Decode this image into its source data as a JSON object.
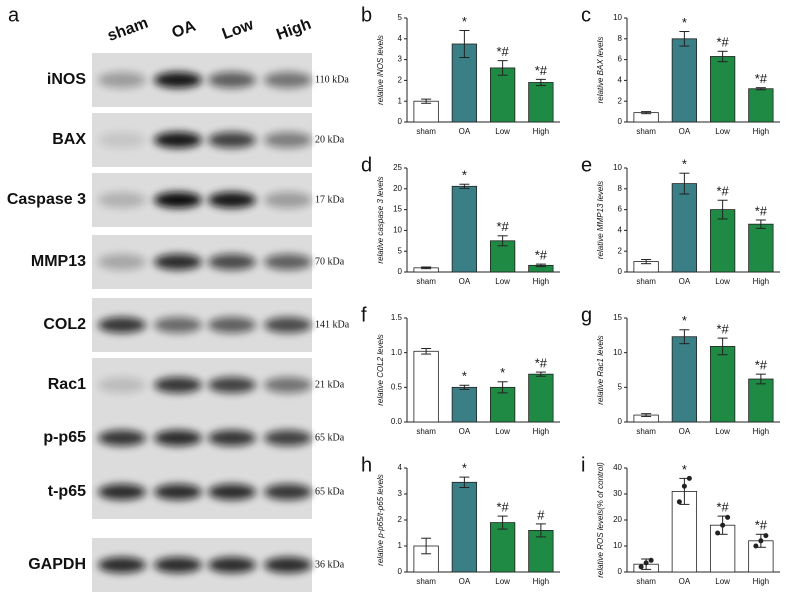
{
  "panel_a": {
    "letter": "a",
    "lanes": [
      "sham",
      "OA",
      "Low",
      "High"
    ],
    "proteins": [
      "iNOS",
      "BAX",
      "Caspase 3",
      "MMP13",
      "COL2",
      "Rac1",
      "p-p65",
      "t-p65",
      "GAPDH"
    ],
    "sizes": [
      "110 kDa",
      "20 kDa",
      "17 kDa",
      "70 kDa",
      "141 kDa",
      "21 kDa",
      "65 kDa",
      "65 kDa",
      "36 kDa"
    ]
  },
  "chart_data": [
    {
      "type": "bar",
      "letter": "b",
      "ylabel": "relative iNOS levels",
      "categories": [
        "sham",
        "OA",
        "Low",
        "High"
      ],
      "values": [
        1.0,
        3.75,
        2.6,
        1.9
      ],
      "errors": [
        0.1,
        0.65,
        0.35,
        0.15
      ],
      "annotations": [
        null,
        "*",
        "*#",
        "*#"
      ],
      "colors": [
        "#ffffff",
        "#3a7f86",
        "#1f8a44",
        "#1f8a44"
      ],
      "ylim": [
        0,
        5
      ],
      "yticks": [
        0,
        1,
        2,
        3,
        4,
        5
      ]
    },
    {
      "type": "bar",
      "letter": "c",
      "ylabel": "relative BAX levels",
      "categories": [
        "sham",
        "OA",
        "Low",
        "High"
      ],
      "values": [
        0.9,
        8.0,
        6.3,
        3.2
      ],
      "errors": [
        0.1,
        0.7,
        0.5,
        0.1
      ],
      "annotations": [
        null,
        "*",
        "*#",
        "*#"
      ],
      "colors": [
        "#ffffff",
        "#3a7f86",
        "#1f8a44",
        "#1f8a44"
      ],
      "ylim": [
        0,
        10
      ],
      "yticks": [
        0,
        2,
        4,
        6,
        8,
        10
      ]
    },
    {
      "type": "bar",
      "letter": "d",
      "ylabel": "relative caspase 3 levels",
      "categories": [
        "sham",
        "OA",
        "Low",
        "High"
      ],
      "values": [
        1.0,
        20.6,
        7.5,
        1.6
      ],
      "errors": [
        0.2,
        0.5,
        1.2,
        0.3
      ],
      "annotations": [
        null,
        "*",
        "*#",
        "*#"
      ],
      "colors": [
        "#ffffff",
        "#3a7f86",
        "#1f8a44",
        "#1f8a44"
      ],
      "ylim": [
        0,
        25
      ],
      "yticks": [
        0,
        5,
        10,
        15,
        20,
        25
      ]
    },
    {
      "type": "bar",
      "letter": "e",
      "ylabel": "relative MMP13 levels",
      "categories": [
        "sham",
        "OA",
        "Low",
        "High"
      ],
      "values": [
        1.0,
        8.5,
        6.0,
        4.6
      ],
      "errors": [
        0.2,
        1.0,
        0.9,
        0.4
      ],
      "annotations": [
        null,
        "*",
        "*#",
        "*#"
      ],
      "colors": [
        "#ffffff",
        "#3a7f86",
        "#1f8a44",
        "#1f8a44"
      ],
      "ylim": [
        0,
        10
      ],
      "yticks": [
        0,
        2,
        4,
        6,
        8,
        10
      ]
    },
    {
      "type": "bar",
      "letter": "f",
      "ylabel": "relative COL2 levels",
      "categories": [
        "sham",
        "OA",
        "Low",
        "High"
      ],
      "values": [
        1.02,
        0.5,
        0.5,
        0.69
      ],
      "errors": [
        0.04,
        0.03,
        0.08,
        0.03
      ],
      "annotations": [
        null,
        "*",
        "*",
        "*#"
      ],
      "colors": [
        "#ffffff",
        "#3a7f86",
        "#1f8a44",
        "#1f8a44"
      ],
      "ylim": [
        0,
        1.5
      ],
      "yticks": [
        {
          "value": 0,
          "label": "0.0"
        },
        0.5,
        {
          "value": 1,
          "label": "1.0"
        },
        1.5
      ]
    },
    {
      "type": "bar",
      "letter": "g",
      "ylabel": "relative Rac1 levels",
      "categories": [
        "sham",
        "OA",
        "Low",
        "High"
      ],
      "values": [
        1.0,
        12.3,
        10.9,
        6.2
      ],
      "errors": [
        0.2,
        1.0,
        1.2,
        0.7
      ],
      "annotations": [
        null,
        "*",
        "*#",
        "*#"
      ],
      "colors": [
        "#ffffff",
        "#3a7f86",
        "#1f8a44",
        "#1f8a44"
      ],
      "ylim": [
        0,
        15
      ],
      "yticks": [
        0,
        5,
        10,
        15
      ]
    },
    {
      "type": "bar",
      "letter": "h",
      "ylabel": "relative p-p65/t-p65 levels",
      "categories": [
        "sham",
        "OA",
        "Low",
        "High"
      ],
      "values": [
        1.0,
        3.45,
        1.9,
        1.6
      ],
      "errors": [
        0.3,
        0.2,
        0.25,
        0.25
      ],
      "annotations": [
        null,
        "*",
        "*#",
        "#"
      ],
      "colors": [
        "#ffffff",
        "#3a7f86",
        "#1f8a44",
        "#1f8a44"
      ],
      "ylim": [
        0,
        4
      ],
      "yticks": [
        0,
        1,
        2,
        3,
        4
      ]
    },
    {
      "type": "bar",
      "letter": "i",
      "ylabel": "relative ROS levels(% of control)",
      "categories": [
        "sham",
        "OA",
        "Low",
        "High"
      ],
      "values": [
        3,
        31,
        18,
        12
      ],
      "errors": [
        2,
        5,
        3.5,
        2.5
      ],
      "annotations": [
        null,
        "*",
        "*#",
        "*#"
      ],
      "colors": [
        "#ffffff",
        "#ffffff",
        "#ffffff",
        "#ffffff"
      ],
      "points": [
        [
          2,
          3.5,
          4.5
        ],
        [
          27,
          33,
          36
        ],
        [
          15,
          18,
          21
        ],
        [
          10,
          12,
          14
        ]
      ],
      "ylim": [
        0,
        40
      ],
      "yticks": [
        0,
        10,
        20,
        30,
        40
      ]
    }
  ]
}
